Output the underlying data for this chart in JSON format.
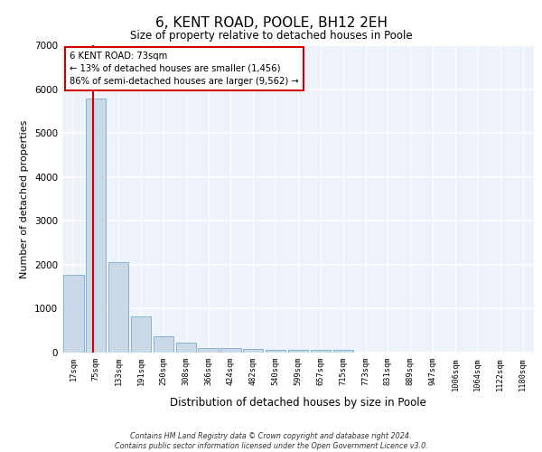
{
  "title": "6, KENT ROAD, POOLE, BH12 2EH",
  "subtitle": "Size of property relative to detached houses in Poole",
  "xlabel": "Distribution of detached houses by size in Poole",
  "ylabel": "Number of detached properties",
  "bar_color": "#c9d9e8",
  "bar_edge_color": "#7aaac8",
  "background_color": "#eef2fa",
  "grid_color": "#ffffff",
  "categories": [
    "17sqm",
    "75sqm",
    "133sqm",
    "191sqm",
    "250sqm",
    "308sqm",
    "366sqm",
    "424sqm",
    "482sqm",
    "540sqm",
    "599sqm",
    "657sqm",
    "715sqm",
    "773sqm",
    "831sqm",
    "889sqm",
    "947sqm",
    "1006sqm",
    "1064sqm",
    "1122sqm",
    "1180sqm"
  ],
  "values": [
    1780,
    5780,
    2060,
    820,
    380,
    220,
    110,
    100,
    75,
    65,
    65,
    60,
    55,
    0,
    0,
    0,
    0,
    0,
    0,
    0,
    0
  ],
  "ylim": [
    0,
    7000
  ],
  "yticks": [
    0,
    1000,
    2000,
    3000,
    4000,
    5000,
    6000,
    7000
  ],
  "property_line_label": "6 KENT ROAD: 73sqm",
  "annotation_line1": "← 13% of detached houses are smaller (1,456)",
  "annotation_line2": "86% of semi-detached houses are larger (9,562) →",
  "vline_color": "#cc0000",
  "annotation_box_color": "#ffffff",
  "annotation_box_edge": "#cc0000",
  "footer_line1": "Contains HM Land Registry data © Crown copyright and database right 2024.",
  "footer_line2": "Contains public sector information licensed under the Open Government Licence v3.0."
}
